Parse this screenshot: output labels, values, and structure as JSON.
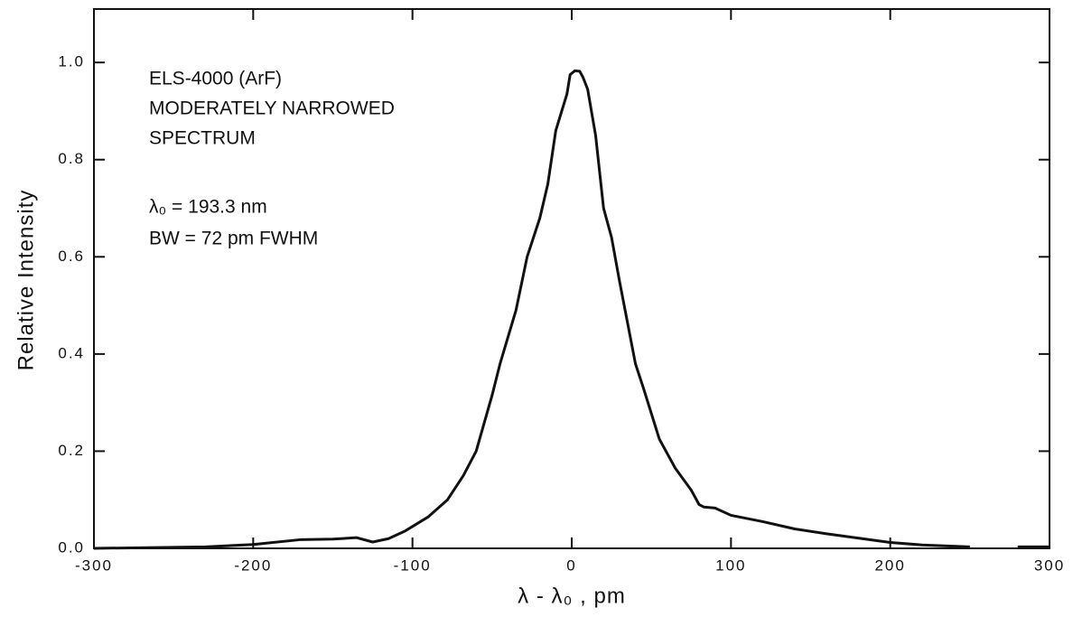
{
  "chart_data": {
    "type": "line",
    "x_label": "λ - λ₀ ,  pm",
    "y_label": "Relative  Intensity",
    "annotations": [
      "ELS-4000  (ArF)",
      "MODERATELY NARROWED",
      "SPECTRUM",
      "λ₀ = 193.3 nm",
      "BW = 72 pm FWHM"
    ],
    "x": [
      -300,
      -230,
      -200,
      -170,
      -150,
      -135,
      -125,
      -115,
      -105,
      -90,
      -78,
      -68,
      -60,
      -50,
      -45,
      -35,
      -28,
      -20,
      -15,
      -10,
      -3,
      -1,
      2,
      5,
      7,
      10,
      15,
      20,
      25,
      30,
      40,
      45,
      55,
      65,
      75,
      80,
      83,
      90,
      100,
      120,
      140,
      160,
      200,
      220,
      250,
      260,
      280,
      300
    ],
    "series": [
      {
        "color": "#111111",
        "values": [
          0.0,
          0.003,
          0.008,
          0.018,
          0.019,
          0.022,
          0.013,
          0.02,
          0.035,
          0.065,
          0.1,
          0.15,
          0.2,
          0.315,
          0.38,
          0.49,
          0.6,
          0.68,
          0.75,
          0.86,
          0.935,
          0.975,
          0.983,
          0.982,
          0.97,
          0.945,
          0.85,
          0.7,
          0.64,
          0.55,
          0.38,
          0.33,
          0.225,
          0.165,
          0.12,
          0.09,
          0.085,
          0.083,
          0.068,
          0.055,
          0.04,
          0.03,
          0.012,
          0.007,
          0.003,
          null,
          0.003,
          0.003
        ]
      }
    ],
    "xlim": [
      -300,
      300
    ],
    "ylim": [
      0,
      1.11
    ],
    "xticks": [
      -300,
      -200,
      -100,
      0,
      100,
      200,
      300
    ],
    "yticks": [
      {
        "value": 0,
        "label": "0.0"
      },
      0.2,
      0.4,
      0.6,
      0.8,
      {
        "value": 1,
        "label": "1.0"
      }
    ]
  }
}
